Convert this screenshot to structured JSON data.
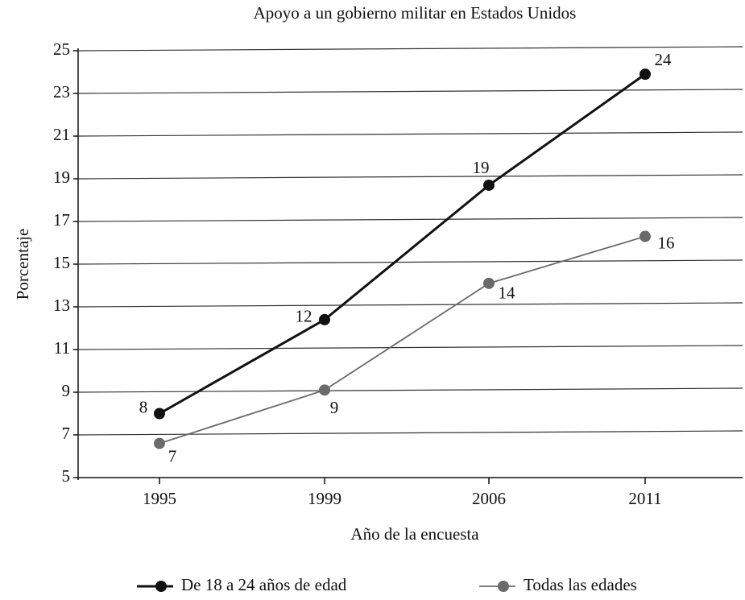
{
  "chart_data": {
    "type": "line",
    "title": "Apoyo a un gobierno militar en Estados Unidos",
    "xlabel": "Año de la encuesta",
    "ylabel": "Porcentaje",
    "categories": [
      "1995",
      "1999",
      "2006",
      "2011"
    ],
    "series": [
      {
        "name": "De 18 a 24 años de edad",
        "color": "#111111",
        "values": [
          8,
          12.4,
          18.7,
          23.9
        ],
        "value_labels": [
          "8",
          "12",
          "19",
          "24"
        ]
      },
      {
        "name": "Todas las edades",
        "color": "#6a6a6a",
        "values": [
          6.6,
          9.1,
          14.1,
          16.3
        ],
        "value_labels": [
          "7",
          "9",
          "14",
          "16"
        ]
      }
    ],
    "ylim": [
      5,
      25
    ],
    "yticks": [
      5,
      7,
      9,
      11,
      13,
      15,
      17,
      19,
      21,
      23,
      25
    ],
    "grid": true
  }
}
